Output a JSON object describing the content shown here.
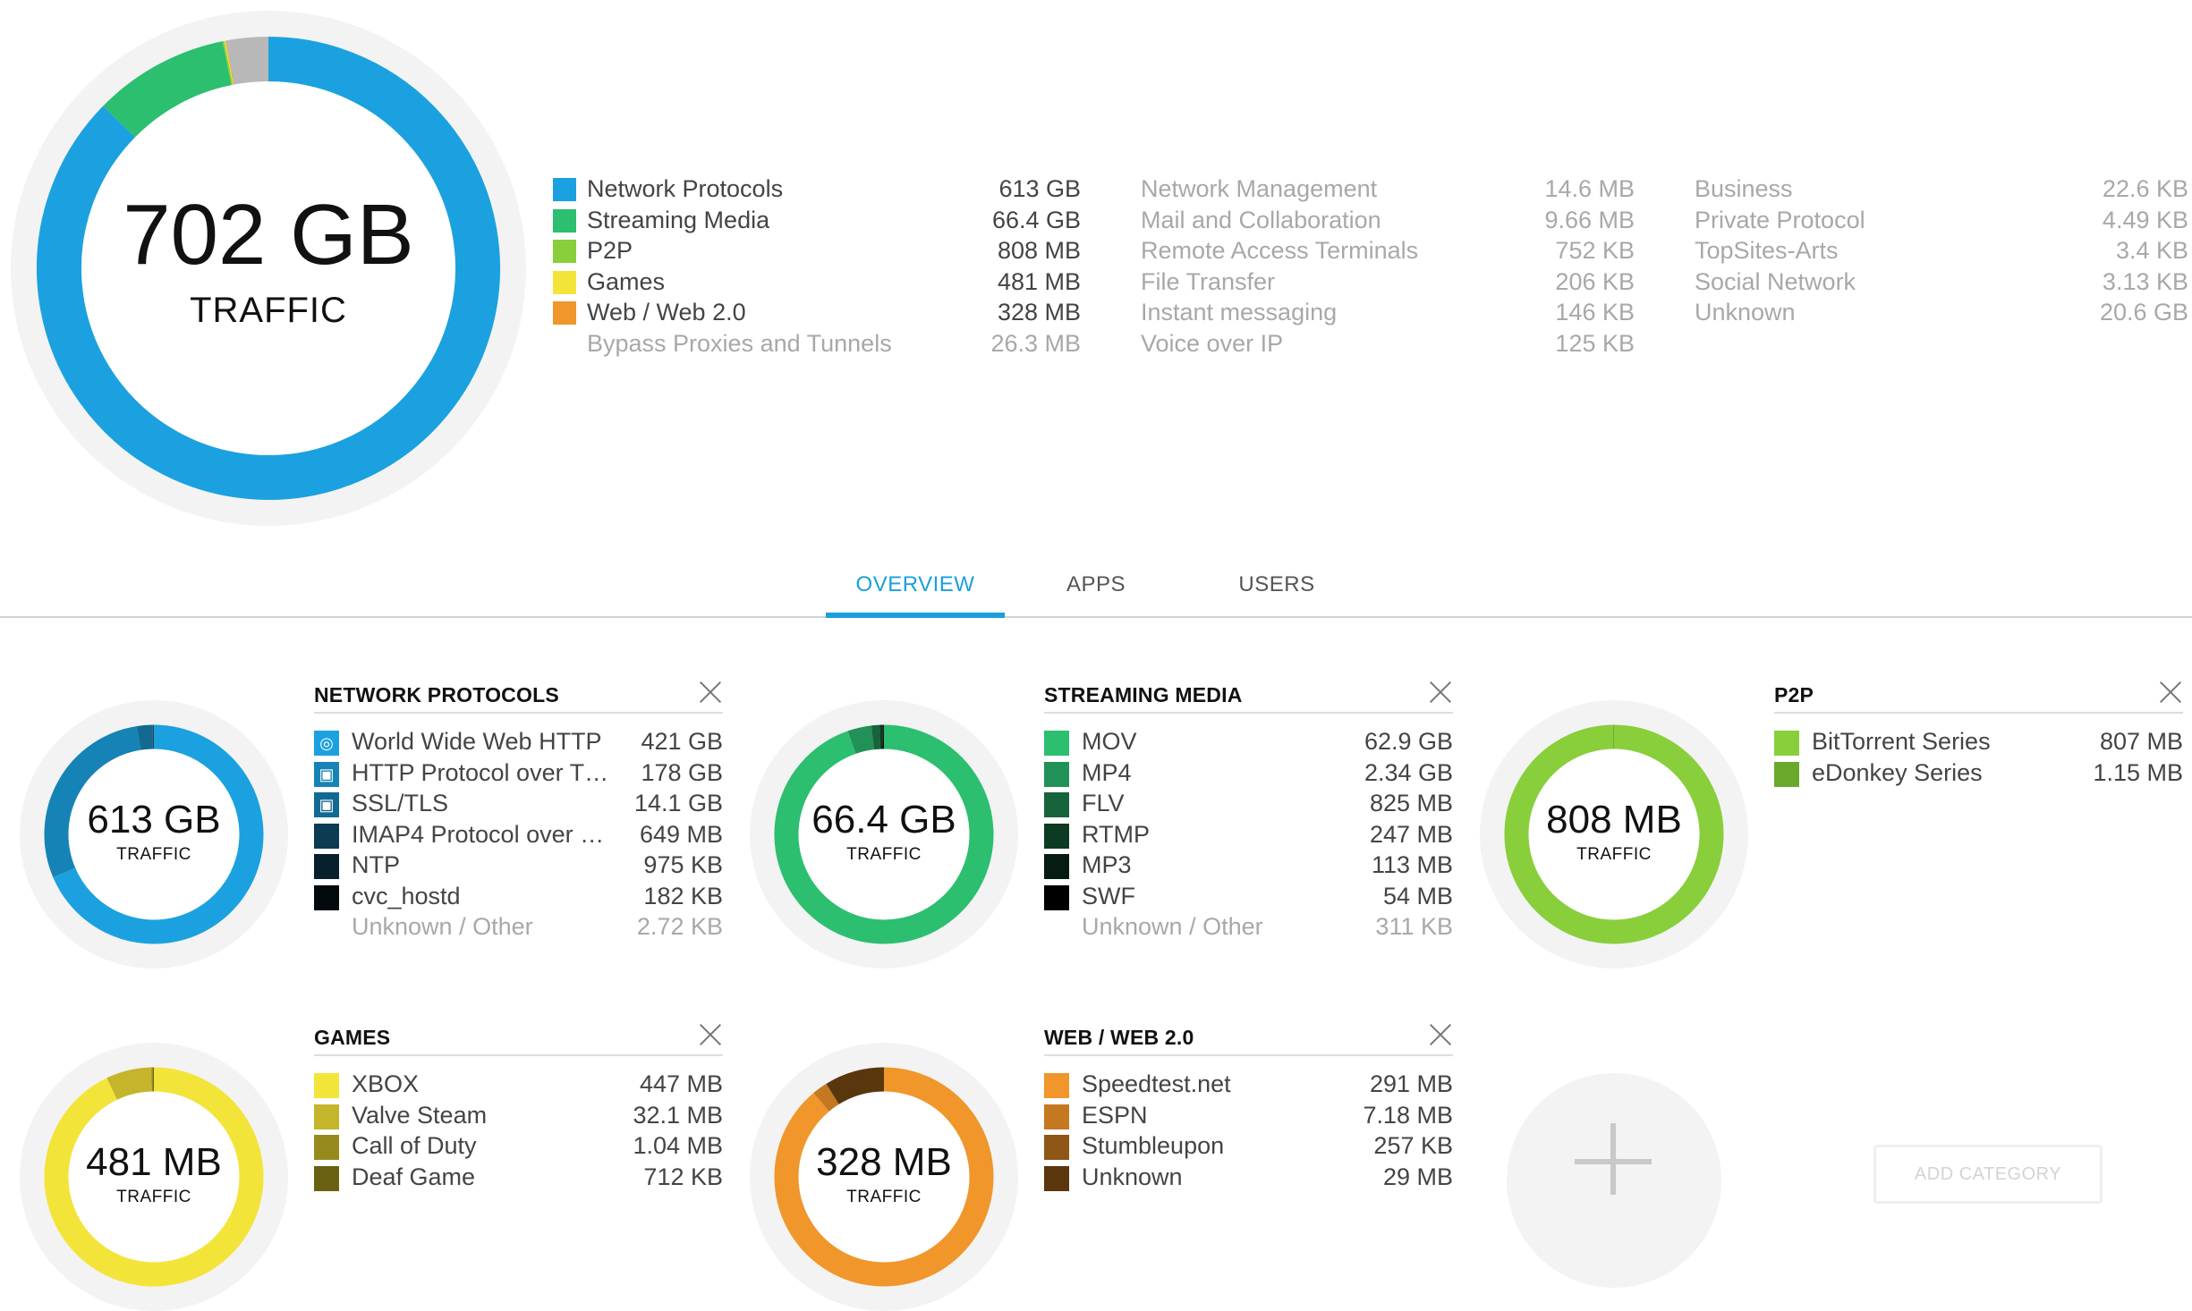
{
  "overview": {
    "total_value": "702 GB",
    "total_label": "TRAFFIC",
    "segments": [
      {
        "name": "Network Protocols",
        "color": "#1ba1df",
        "fraction": 0.873
      },
      {
        "name": "Streaming Media",
        "color": "#2bbf6f",
        "fraction": 0.0946
      },
      {
        "name": "P2P",
        "color": "#88cf3b",
        "fraction": 0.0012
      },
      {
        "name": "Games",
        "color": "#f3e43a",
        "fraction": 0.0007
      },
      {
        "name": "Web / Web 2.0",
        "color": "#f0962b",
        "fraction": 0.0005
      },
      {
        "name": "Unknown",
        "color": "#b8b8b8",
        "fraction": 0.0293
      }
    ],
    "legend_col1": [
      {
        "name": "Network Protocols",
        "value": "613 GB",
        "color": "#1ba1df",
        "muted": false
      },
      {
        "name": "Streaming Media",
        "value": "66.4 GB",
        "color": "#2bbf6f",
        "muted": false
      },
      {
        "name": "P2P",
        "value": "808 MB",
        "color": "#88cf3b",
        "muted": false
      },
      {
        "name": "Games",
        "value": "481 MB",
        "color": "#f3e43a",
        "muted": false
      },
      {
        "name": "Web / Web 2.0",
        "value": "328 MB",
        "color": "#f0962b",
        "muted": false
      },
      {
        "name": "Bypass Proxies and Tunnels",
        "value": "26.3 MB",
        "color": "",
        "muted": true
      }
    ],
    "legend_col2": [
      {
        "name": "Network Management",
        "value": "14.6 MB"
      },
      {
        "name": "Mail and Collaboration",
        "value": "9.66 MB"
      },
      {
        "name": "Remote Access Terminals",
        "value": "752 KB"
      },
      {
        "name": "File Transfer",
        "value": "206 KB"
      },
      {
        "name": "Instant messaging",
        "value": "146 KB"
      },
      {
        "name": "Voice over IP",
        "value": "125 KB"
      }
    ],
    "legend_col3": [
      {
        "name": "Business",
        "value": "22.6 KB"
      },
      {
        "name": "Private Protocol",
        "value": "4.49 KB"
      },
      {
        "name": "TopSites-Arts",
        "value": "3.4 KB"
      },
      {
        "name": "Social Network",
        "value": "3.13 KB"
      },
      {
        "name": "Unknown",
        "value": "20.6 GB"
      }
    ]
  },
  "tabs": [
    {
      "label": "OVERVIEW",
      "active": true
    },
    {
      "label": "APPS",
      "active": false
    },
    {
      "label": "USERS",
      "active": false
    }
  ],
  "cards": [
    {
      "title": "NETWORK PROTOCOLS",
      "total": "613 GB",
      "label": "TRAFFIC",
      "items": [
        {
          "name": "World Wide Web HTTP",
          "value": "421 GB",
          "color": "#1ba1df",
          "icon": "globe-icon",
          "fraction": 0.687
        },
        {
          "name": "HTTP Protocol over T…",
          "value": "178 GB",
          "color": "#1683b6",
          "icon": "lock-icon",
          "fraction": 0.29
        },
        {
          "name": "SSL/TLS",
          "value": "14.1 GB",
          "color": "#126a93",
          "icon": "lock-icon",
          "fraction": 0.023
        },
        {
          "name": "IMAP4 Protocol over …",
          "value": "649 MB",
          "color": "#0d3b52",
          "icon": "",
          "fraction": 0.0011
        },
        {
          "name": "NTP",
          "value": "975 KB",
          "color": "#08202c",
          "icon": "",
          "fraction": 0.0004
        },
        {
          "name": "cvc_hostd",
          "value": "182 KB",
          "color": "#030a0e",
          "icon": "",
          "fraction": 0.0003
        },
        {
          "name": "Unknown / Other",
          "value": "2.72 KB",
          "color": "",
          "icon": "",
          "fraction": 0.0,
          "muted": true
        }
      ]
    },
    {
      "title": "STREAMING MEDIA",
      "total": "66.4 GB",
      "label": "TRAFFIC",
      "items": [
        {
          "name": "MOV",
          "value": "62.9 GB",
          "color": "#2bbf6f",
          "fraction": 0.947
        },
        {
          "name": "MP4",
          "value": "2.34 GB",
          "color": "#219157",
          "fraction": 0.035
        },
        {
          "name": "FLV",
          "value": "825 MB",
          "color": "#17643c",
          "fraction": 0.012
        },
        {
          "name": "RTMP",
          "value": "247 MB",
          "color": "#0d3a22",
          "fraction": 0.004
        },
        {
          "name": "MP3",
          "value": "113 MB",
          "color": "#061c10",
          "fraction": 0.0017
        },
        {
          "name": "SWF",
          "value": "54 MB",
          "color": "#000000",
          "fraction": 0.0008
        },
        {
          "name": "Unknown / Other",
          "value": "311 KB",
          "color": "",
          "fraction": 0.0,
          "muted": true
        }
      ]
    },
    {
      "title": "P2P",
      "total": "808 MB",
      "label": "TRAFFIC",
      "items": [
        {
          "name": "BitTorrent Series",
          "value": "807 MB",
          "color": "#88cf3b",
          "fraction": 0.9986
        },
        {
          "name": "eDonkey Series",
          "value": "1.15 MB",
          "color": "#6aa82c",
          "fraction": 0.0014
        }
      ]
    },
    {
      "title": "GAMES",
      "total": "481 MB",
      "label": "TRAFFIC",
      "items": [
        {
          "name": "XBOX",
          "value": "447 MB",
          "color": "#f3e43a",
          "fraction": 0.929
        },
        {
          "name": "Valve Steam",
          "value": "32.1 MB",
          "color": "#c4b52a",
          "fraction": 0.067
        },
        {
          "name": "Call of Duty",
          "value": "1.04 MB",
          "color": "#978a1d",
          "fraction": 0.0022
        },
        {
          "name": "Deaf Game",
          "value": "712 KB",
          "color": "#6a6012",
          "fraction": 0.0015
        }
      ]
    },
    {
      "title": "WEB / WEB 2.0",
      "total": "328 MB",
      "label": "TRAFFIC",
      "items": [
        {
          "name": "Speedtest.net",
          "value": "291 MB",
          "color": "#f0962b",
          "fraction": 0.887
        },
        {
          "name": "ESPN",
          "value": "7.18 MB",
          "color": "#c47820",
          "fraction": 0.022
        },
        {
          "name": "Stumbleupon",
          "value": "257 KB",
          "color": "#8f5617",
          "fraction": 0.0008
        },
        {
          "name": "Unknown",
          "value": "29 MB",
          "color": "#5a360d",
          "fraction": 0.088
        }
      ]
    }
  ],
  "add_category_label": "ADD CATEGORY"
}
